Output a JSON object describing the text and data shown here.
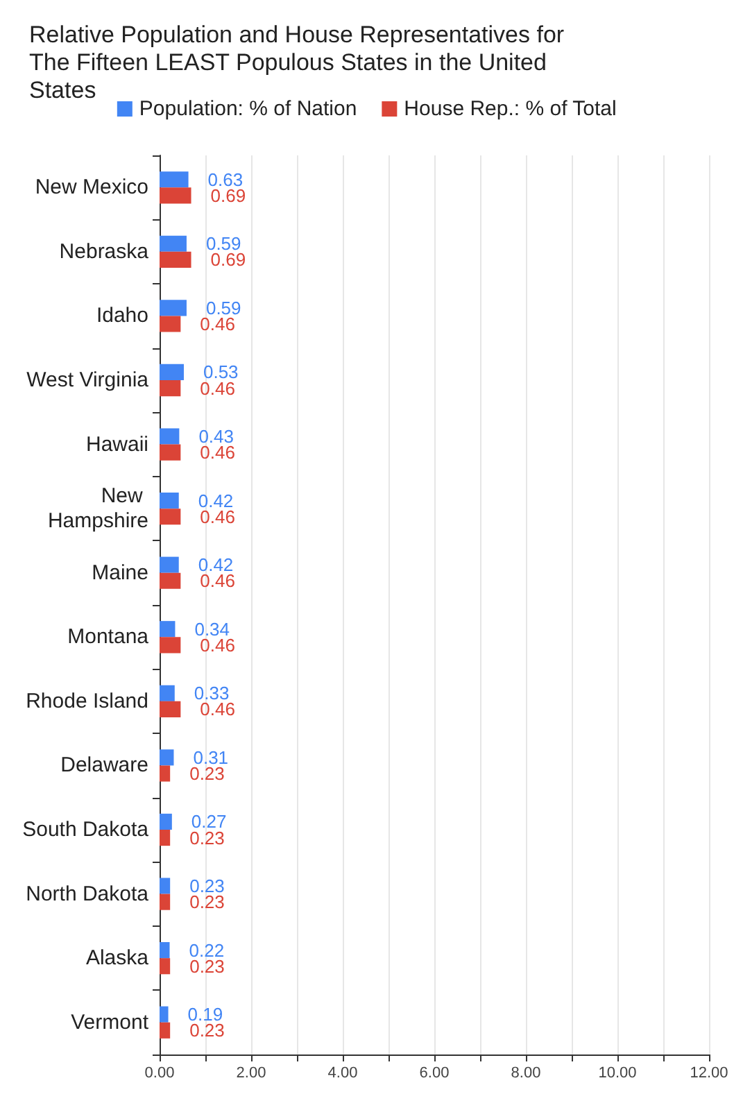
{
  "chart_data": {
    "type": "bar",
    "orientation": "horizontal",
    "title": "Relative Population and House Representatives for The Fifteen LEAST Populous States in the United States",
    "categories": [
      "New Mexico",
      "Nebraska",
      "Idaho",
      "West Virginia",
      "Hawaii",
      "New Hampshire",
      "Maine",
      "Montana",
      "Rhode Island",
      "Delaware",
      "South Dakota",
      "North Dakota",
      "Alaska",
      "Vermont"
    ],
    "series": [
      {
        "name": "Population: % of Nation",
        "color": "#4285f4",
        "values": [
          0.63,
          0.59,
          0.59,
          0.53,
          0.43,
          0.42,
          0.42,
          0.34,
          0.33,
          0.31,
          0.27,
          0.23,
          0.22,
          0.19
        ]
      },
      {
        "name": "House Rep.: % of Total",
        "color": "#db4437",
        "values": [
          0.69,
          0.69,
          0.46,
          0.46,
          0.46,
          0.46,
          0.46,
          0.46,
          0.46,
          0.23,
          0.23,
          0.23,
          0.23,
          0.23
        ]
      }
    ],
    "xlim": [
      0,
      12
    ],
    "xticks": [
      {
        "value": 0,
        "label": "0.00"
      },
      {
        "value": 1,
        "label": null
      },
      {
        "value": 2,
        "label": "2.00"
      },
      {
        "value": 3,
        "label": null
      },
      {
        "value": 4,
        "label": "4.00"
      },
      {
        "value": 5,
        "label": null
      },
      {
        "value": 6,
        "label": "6.00"
      },
      {
        "value": 7,
        "label": null
      },
      {
        "value": 8,
        "label": "8.00"
      },
      {
        "value": 9,
        "label": null
      },
      {
        "value": 10,
        "label": "10.00"
      },
      {
        "value": 11,
        "label": null
      },
      {
        "value": 12,
        "label": "12.00"
      }
    ],
    "grid": "x",
    "legend": "top",
    "data_labels": true
  }
}
